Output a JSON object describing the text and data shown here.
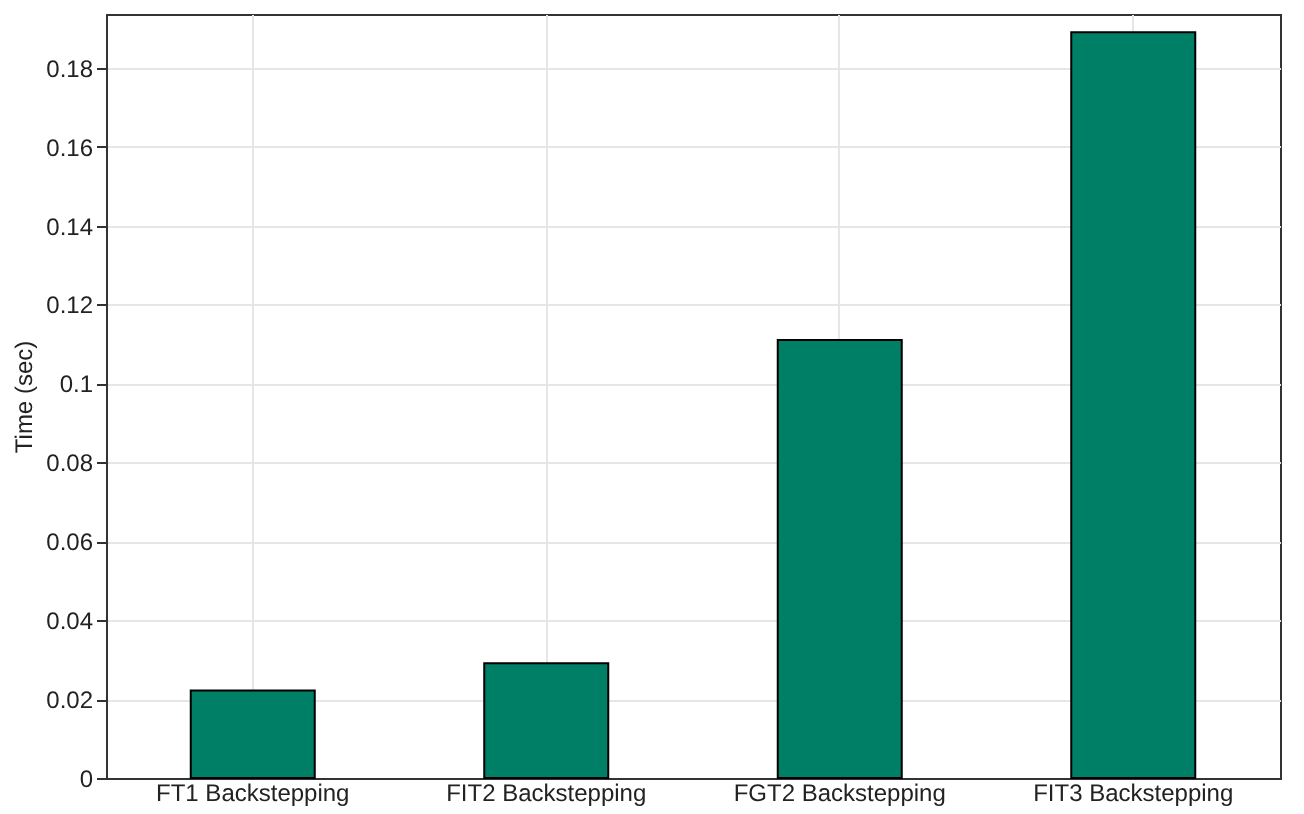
{
  "chart_data": {
    "type": "bar",
    "ylabel": "Time (sec)",
    "categories": [
      "FT1 Backstepping",
      "FIT2 Backstepping",
      "FGT2 Backstepping",
      "FIT3 Backstepping"
    ],
    "values": [
      0.0222,
      0.0291,
      0.111,
      0.189
    ],
    "color": "#007f67",
    "ylim": [
      0,
      0.1936
    ],
    "yticks": [
      0,
      0.02,
      0.04,
      0.06,
      0.08,
      0.1,
      0.12,
      0.14,
      0.16,
      0.18
    ],
    "grid": true
  }
}
